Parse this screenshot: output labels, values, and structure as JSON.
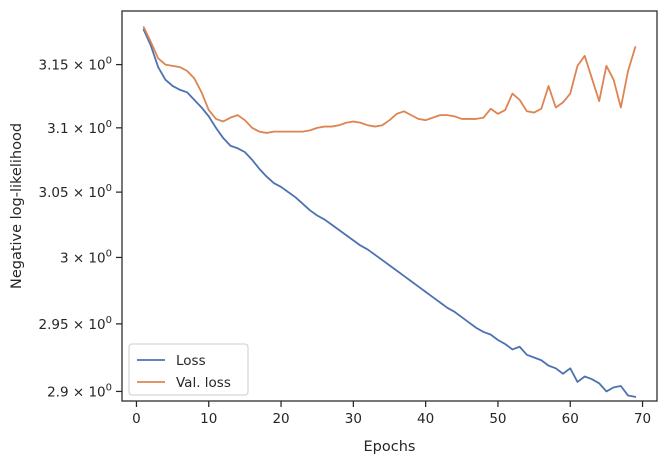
{
  "chart_data": {
    "type": "line",
    "xlabel": "Epochs",
    "ylabel": "Negative log-likelihood",
    "y_scale": "log",
    "xlim": [
      -2,
      72
    ],
    "ylim": [
      2.893,
      3.193
    ],
    "x_ticks": [
      {
        "value": 0,
        "label": "0"
      },
      {
        "value": 10,
        "label": "10"
      },
      {
        "value": 20,
        "label": "20"
      },
      {
        "value": 30,
        "label": "30"
      },
      {
        "value": 40,
        "label": "40"
      },
      {
        "value": 50,
        "label": "50"
      },
      {
        "value": 60,
        "label": "60"
      },
      {
        "value": 70,
        "label": "70"
      }
    ],
    "y_ticks": [
      {
        "value": 3.15,
        "label_base": "3.15 × 10",
        "label_exp": "0"
      },
      {
        "value": 3.1,
        "label_base": "3.1 × 10",
        "label_exp": "0"
      },
      {
        "value": 3.05,
        "label_base": "3.05 × 10",
        "label_exp": "0"
      },
      {
        "value": 3.0,
        "label_base": "3 × 10",
        "label_exp": "0"
      },
      {
        "value": 2.95,
        "label_base": "2.95 × 10",
        "label_exp": "0"
      },
      {
        "value": 2.9,
        "label_base": "2.9 × 10",
        "label_exp": "0"
      }
    ],
    "grid": false,
    "legend_position": "lower-left",
    "series": [
      {
        "name": "Loss",
        "color": "#4c72b0",
        "x": [
          1,
          2,
          3,
          4,
          5,
          6,
          7,
          8,
          9,
          10,
          11,
          12,
          13,
          14,
          15,
          16,
          17,
          18,
          19,
          20,
          21,
          22,
          23,
          24,
          25,
          26,
          27,
          28,
          29,
          30,
          31,
          32,
          33,
          34,
          35,
          36,
          37,
          38,
          39,
          40,
          41,
          42,
          43,
          44,
          45,
          46,
          47,
          48,
          49,
          50,
          51,
          52,
          53,
          54,
          55,
          56,
          57,
          58,
          59,
          60,
          61,
          62,
          63,
          64,
          65,
          66,
          67,
          68,
          69
        ],
        "values": [
          3.178,
          3.165,
          3.148,
          3.138,
          3.133,
          3.13,
          3.128,
          3.122,
          3.116,
          3.109,
          3.1,
          3.092,
          3.086,
          3.084,
          3.081,
          3.075,
          3.068,
          3.062,
          3.057,
          3.054,
          3.05,
          3.046,
          3.041,
          3.036,
          3.032,
          3.029,
          3.025,
          3.021,
          3.017,
          3.013,
          3.009,
          3.006,
          3.002,
          2.998,
          2.994,
          2.99,
          2.986,
          2.982,
          2.978,
          2.974,
          2.97,
          2.966,
          2.962,
          2.959,
          2.955,
          2.951,
          2.947,
          2.944,
          2.942,
          2.938,
          2.935,
          2.931,
          2.933,
          2.927,
          2.925,
          2.923,
          2.919,
          2.917,
          2.913,
          2.917,
          2.907,
          2.911,
          2.909,
          2.906,
          2.9,
          2.903,
          2.904,
          2.897,
          2.896
        ]
      },
      {
        "name": "Val. loss",
        "color": "#dd8452",
        "x": [
          1,
          2,
          3,
          4,
          5,
          6,
          7,
          8,
          9,
          10,
          11,
          12,
          13,
          14,
          15,
          16,
          17,
          18,
          19,
          20,
          21,
          22,
          23,
          24,
          25,
          26,
          27,
          28,
          29,
          30,
          31,
          32,
          33,
          34,
          35,
          36,
          37,
          38,
          39,
          40,
          41,
          42,
          43,
          44,
          45,
          46,
          47,
          48,
          49,
          50,
          51,
          52,
          53,
          54,
          55,
          56,
          57,
          58,
          59,
          60,
          61,
          62,
          63,
          64,
          65,
          66,
          67,
          68,
          69
        ],
        "values": [
          3.18,
          3.168,
          3.155,
          3.15,
          3.149,
          3.148,
          3.145,
          3.139,
          3.128,
          3.114,
          3.107,
          3.105,
          3.108,
          3.11,
          3.106,
          3.1,
          3.097,
          3.096,
          3.097,
          3.097,
          3.097,
          3.097,
          3.097,
          3.098,
          3.1,
          3.101,
          3.101,
          3.102,
          3.104,
          3.105,
          3.104,
          3.102,
          3.101,
          3.102,
          3.106,
          3.111,
          3.113,
          3.11,
          3.107,
          3.106,
          3.108,
          3.11,
          3.11,
          3.109,
          3.107,
          3.107,
          3.107,
          3.108,
          3.115,
          3.111,
          3.114,
          3.127,
          3.122,
          3.113,
          3.112,
          3.115,
          3.133,
          3.116,
          3.12,
          3.127,
          3.149,
          3.157,
          3.139,
          3.121,
          3.149,
          3.138,
          3.116,
          3.145,
          3.164
        ]
      }
    ]
  }
}
